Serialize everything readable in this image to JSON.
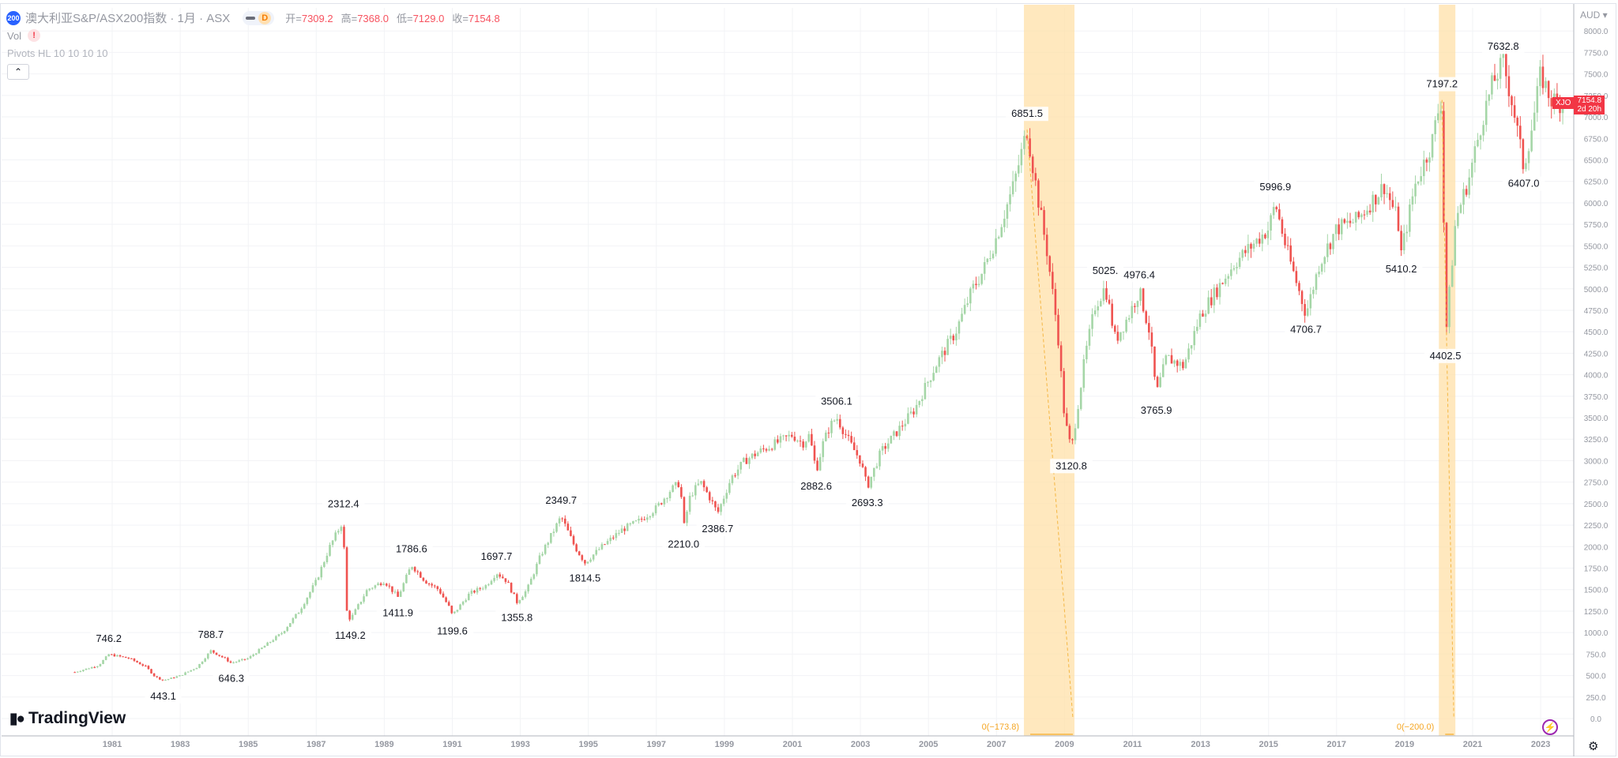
{
  "header": {
    "symbol_badge": "200",
    "title": "澳大利亚S&P/ASX200指数 · 1月 · ASX",
    "interval_badge": "D",
    "ohlc": [
      {
        "k": "开=",
        "v": "7309.2"
      },
      {
        "k": "高=",
        "v": "7368.0"
      },
      {
        "k": "低=",
        "v": "7129.0"
      },
      {
        "k": "收=",
        "v": "7154.8"
      }
    ],
    "vol_label": "Vol",
    "vol_warning": "!",
    "pivots_label": "Pivots HL 10 10 10 10",
    "collapse_icon": "chevron-up-icon"
  },
  "price_axis": {
    "currency": "AUD",
    "last_symbol": "XJO",
    "last_price": "7154.8",
    "countdown": "2d 20h"
  },
  "branding": {
    "logo_text": "TradingView"
  },
  "colors": {
    "up": "#a5d6a7",
    "down": "#ef5350",
    "highlight": "#ffe0a8",
    "last_price": "#f23645"
  },
  "chart_data": {
    "type": "candlestick",
    "interval": "monthly",
    "ylim": [
      0,
      8000
    ],
    "y_ticks": [
      "0.0",
      "250.0",
      "500.0",
      "750.0",
      "1000.0",
      "1250.0",
      "1500.0",
      "1750.0",
      "2000.0",
      "2250.0",
      "2500.0",
      "2750.0",
      "3000.0",
      "3250.0",
      "3500.0",
      "3750.0",
      "4000.0",
      "4250.0",
      "4500.0",
      "4750.0",
      "5000.0",
      "5250.0",
      "5500.0",
      "5750.0",
      "6000.0",
      "6250.0",
      "6500.0",
      "6750.0",
      "7000.0",
      "7250.0",
      "7500.0",
      "7750.0",
      "8000.0"
    ],
    "x_ticks": [
      "1981",
      "1983",
      "1985",
      "1987",
      "1989",
      "1991",
      "1993",
      "1995",
      "1997",
      "1999",
      "2001",
      "2003",
      "2005",
      "2007",
      "2009",
      "2011",
      "2013",
      "2015",
      "2017",
      "2019",
      "2021",
      "2023"
    ],
    "close_path": [
      [
        1979.9,
        540
      ],
      [
        1980.6,
        620
      ],
      [
        1980.9,
        746.2
      ],
      [
        1981.5,
        700
      ],
      [
        1982.0,
        600
      ],
      [
        1982.25,
        490
      ],
      [
        1982.5,
        443.1
      ],
      [
        1983.0,
        500
      ],
      [
        1983.5,
        600
      ],
      [
        1983.9,
        788.7
      ],
      [
        1984.3,
        700
      ],
      [
        1984.5,
        646.3
      ],
      [
        1985.0,
        700
      ],
      [
        1985.5,
        850
      ],
      [
        1986.0,
        1000
      ],
      [
        1986.5,
        1250
      ],
      [
        1987.0,
        1600
      ],
      [
        1987.4,
        2000
      ],
      [
        1987.8,
        2312.4
      ],
      [
        1987.85,
        1300
      ],
      [
        1988.0,
        1149.2
      ],
      [
        1988.5,
        1500
      ],
      [
        1989.0,
        1600
      ],
      [
        1989.4,
        1411.9
      ],
      [
        1989.8,
        1786.6
      ],
      [
        1990.2,
        1600
      ],
      [
        1990.6,
        1500
      ],
      [
        1990.9,
        1300
      ],
      [
        1991.0,
        1199.6
      ],
      [
        1991.5,
        1450
      ],
      [
        1992.0,
        1550
      ],
      [
        1992.3,
        1697.7
      ],
      [
        1992.6,
        1600
      ],
      [
        1992.9,
        1355.8
      ],
      [
        1993.2,
        1500
      ],
      [
        1993.6,
        1900
      ],
      [
        1994.0,
        2200
      ],
      [
        1994.2,
        2349.7
      ],
      [
        1994.6,
        2000
      ],
      [
        1994.9,
        1814.5
      ],
      [
        1995.4,
        2000
      ],
      [
        1996.0,
        2200
      ],
      [
        1996.5,
        2300
      ],
      [
        1997.0,
        2450
      ],
      [
        1997.4,
        2650
      ],
      [
        1997.7,
        2750
      ],
      [
        1997.8,
        2210.0
      ],
      [
        1998.0,
        2600
      ],
      [
        1998.3,
        2750
      ],
      [
        1998.6,
        2550
      ],
      [
        1998.8,
        2386.7
      ],
      [
        1999.2,
        2800
      ],
      [
        1999.6,
        3000
      ],
      [
        2000.0,
        3100
      ],
      [
        2000.5,
        3200
      ],
      [
        2001.0,
        3300
      ],
      [
        2001.3,
        3200
      ],
      [
        2001.5,
        3300
      ],
      [
        2001.7,
        2882.6
      ],
      [
        2001.9,
        3200
      ],
      [
        2002.1,
        3400
      ],
      [
        2002.3,
        3506.1
      ],
      [
        2002.7,
        3200
      ],
      [
        2003.0,
        3000
      ],
      [
        2003.2,
        2693.3
      ],
      [
        2003.6,
        3100
      ],
      [
        2004.0,
        3300
      ],
      [
        2004.6,
        3600
      ],
      [
        2005.2,
        4100
      ],
      [
        2005.8,
        4500
      ],
      [
        2006.3,
        5000
      ],
      [
        2006.6,
        5200
      ],
      [
        2007.0,
        5600
      ],
      [
        2007.5,
        6200
      ],
      [
        2007.9,
        6851.5
      ],
      [
        2008.2,
        6100
      ],
      [
        2008.5,
        5400
      ],
      [
        2008.8,
        4500
      ],
      [
        2009.0,
        3500
      ],
      [
        2009.2,
        3120.8
      ],
      [
        2009.6,
        4200
      ],
      [
        2009.9,
        4800
      ],
      [
        2010.2,
        5025
      ],
      [
        2010.5,
        4400
      ],
      [
        2010.9,
        4700
      ],
      [
        2011.2,
        4976.4
      ],
      [
        2011.5,
        4500
      ],
      [
        2011.7,
        3765.9
      ],
      [
        2012.0,
        4200
      ],
      [
        2012.5,
        4100
      ],
      [
        2013.0,
        4700
      ],
      [
        2013.5,
        5000
      ],
      [
        2014.0,
        5300
      ],
      [
        2014.5,
        5500
      ],
      [
        2015.0,
        5700
      ],
      [
        2015.2,
        5996.9
      ],
      [
        2015.5,
        5500
      ],
      [
        2015.8,
        5100
      ],
      [
        2016.1,
        4706.7
      ],
      [
        2016.5,
        5300
      ],
      [
        2017.0,
        5700
      ],
      [
        2017.6,
        5800
      ],
      [
        2018.0,
        6000
      ],
      [
        2018.4,
        6200
      ],
      [
        2018.8,
        5800
      ],
      [
        2018.9,
        5410.2
      ],
      [
        2019.3,
        6200
      ],
      [
        2019.8,
        6700
      ],
      [
        2020.0,
        7100
      ],
      [
        2020.1,
        7197.2
      ],
      [
        2020.2,
        4402.5
      ],
      [
        2020.5,
        5800
      ],
      [
        2020.9,
        6300
      ],
      [
        2021.3,
        7000
      ],
      [
        2021.6,
        7400
      ],
      [
        2021.9,
        7632.8
      ],
      [
        2022.2,
        7100
      ],
      [
        2022.5,
        6407.0
      ],
      [
        2022.8,
        7000
      ],
      [
        2023.0,
        7500
      ],
      [
        2023.3,
        7200
      ],
      [
        2023.7,
        7154.8
      ]
    ],
    "pivots": [
      {
        "date": 1980.9,
        "value": "746.2",
        "kind": "high"
      },
      {
        "date": 1982.5,
        "value": "443.1",
        "kind": "low"
      },
      {
        "date": 1983.9,
        "value": "788.7",
        "kind": "high"
      },
      {
        "date": 1984.5,
        "value": "646.3",
        "kind": "low"
      },
      {
        "date": 1987.8,
        "value": "2312.4",
        "kind": "high"
      },
      {
        "date": 1988.0,
        "value": "1149.2",
        "kind": "low"
      },
      {
        "date": 1989.4,
        "value": "1411.9",
        "kind": "low"
      },
      {
        "date": 1989.8,
        "value": "1786.6",
        "kind": "high"
      },
      {
        "date": 1991.0,
        "value": "1199.6",
        "kind": "low"
      },
      {
        "date": 1992.3,
        "value": "1697.7",
        "kind": "high"
      },
      {
        "date": 1992.9,
        "value": "1355.8",
        "kind": "low"
      },
      {
        "date": 1994.2,
        "value": "2349.7",
        "kind": "high"
      },
      {
        "date": 1994.9,
        "value": "1814.5",
        "kind": "low"
      },
      {
        "date": 1997.8,
        "value": "2210.0",
        "kind": "low"
      },
      {
        "date": 1998.8,
        "value": "2386.7",
        "kind": "low"
      },
      {
        "date": 2001.7,
        "value": "2882.6",
        "kind": "low"
      },
      {
        "date": 2002.3,
        "value": "3506.1",
        "kind": "high"
      },
      {
        "date": 2003.2,
        "value": "2693.3",
        "kind": "low"
      },
      {
        "date": 2007.9,
        "value": "6851.5",
        "kind": "high"
      },
      {
        "date": 2009.2,
        "value": "3120.8",
        "kind": "low"
      },
      {
        "date": 2010.2,
        "value": "5025.",
        "kind": "high"
      },
      {
        "date": 2011.2,
        "value": "4976.4",
        "kind": "high"
      },
      {
        "date": 2011.7,
        "value": "3765.9",
        "kind": "low"
      },
      {
        "date": 2015.2,
        "value": "5996.9",
        "kind": "high"
      },
      {
        "date": 2016.1,
        "value": "4706.7",
        "kind": "low"
      },
      {
        "date": 2018.9,
        "value": "5410.2",
        "kind": "low"
      },
      {
        "date": 2020.1,
        "value": "7197.2",
        "kind": "high"
      },
      {
        "date": 2020.2,
        "value": "4402.5",
        "kind": "low"
      },
      {
        "date": 2021.9,
        "value": "7632.8",
        "kind": "high"
      },
      {
        "date": 2022.5,
        "value": "6407.0",
        "kind": "low"
      }
    ],
    "drawdowns": [
      {
        "from": 2007.9,
        "to": 2009.2,
        "peak": 6851.5,
        "label": "0(−173.8)"
      },
      {
        "from": 2020.1,
        "to": 2020.4,
        "peak": 7197.2,
        "label": "0(−200.0)"
      }
    ]
  }
}
